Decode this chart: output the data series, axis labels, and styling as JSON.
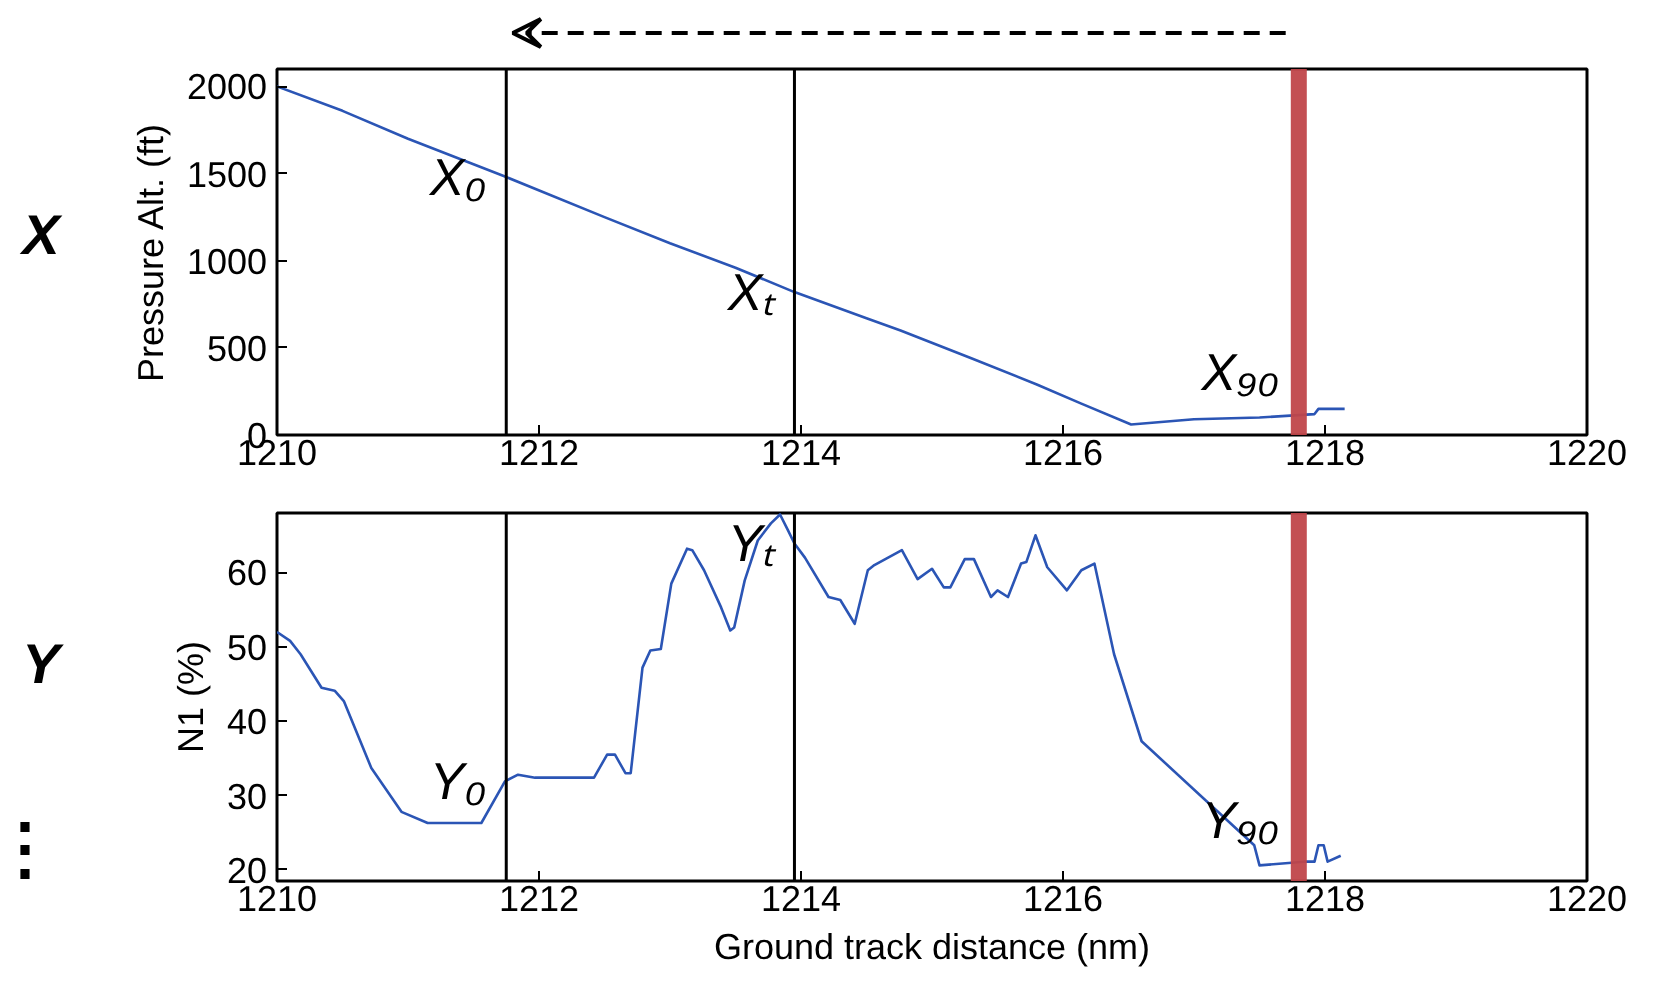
{
  "chart_data": [
    {
      "type": "line",
      "ylabel": "Pressure Alt. (ft)",
      "xlim": [
        1210,
        1220
      ],
      "xticks": [
        1210,
        1212,
        1214,
        1216,
        1218,
        1220
      ],
      "ylim": [
        0,
        2100
      ],
      "yticks": [
        0,
        500,
        1000,
        1500,
        2000
      ],
      "grid": false,
      "series": [
        {
          "color": "#2b55b5",
          "x": [
            1210.0,
            1210.5,
            1211.0,
            1211.75,
            1212.5,
            1213.0,
            1213.5,
            1213.95,
            1214.5,
            1214.76,
            1215.3,
            1215.8,
            1216.14,
            1216.52,
            1217.0,
            1217.5,
            1217.92,
            1217.95,
            1218.15
          ],
          "values": [
            2000,
            1860,
            1700,
            1480,
            1250,
            1100,
            960,
            820,
            670,
            600,
            440,
            290,
            180,
            60,
            90,
            100,
            120,
            150,
            150
          ]
        }
      ],
      "ref_lines": [
        {
          "axis": "x",
          "value": 1211.75,
          "color": "#000000"
        },
        {
          "axis": "x",
          "value": 1213.95,
          "color": "#000000"
        },
        {
          "axis": "x",
          "value": 1217.8,
          "color": "#c0464a"
        }
      ],
      "annotations": [
        {
          "text": "X₀",
          "x": 1211.75,
          "y": 1480
        },
        {
          "text": "Xₜ",
          "x": 1213.95,
          "y": 820
        },
        {
          "text": "X₉₀",
          "x": 1217.8,
          "y": 120
        },
        "X"
      ]
    },
    {
      "type": "line",
      "xlabel": "Ground track distance (nm)",
      "ylabel": "N1 (%)",
      "xlim": [
        1210,
        1220
      ],
      "xticks": [
        1210,
        1212,
        1214,
        1216,
        1218,
        1220
      ],
      "ylim": [
        18.5,
        68
      ],
      "yticks": [
        20,
        30,
        40,
        50,
        60
      ],
      "grid": false,
      "series": [
        {
          "color": "#2b55b5",
          "x": [
            1210.0,
            1210.1,
            1210.18,
            1210.34,
            1210.44,
            1210.51,
            1210.72,
            1210.95,
            1211.15,
            1211.56,
            1211.74,
            1211.84,
            1211.97,
            1212.42,
            1212.52,
            1212.58,
            1212.66,
            1212.7,
            1212.79,
            1212.85,
            1212.93,
            1213.01,
            1213.13,
            1213.17,
            1213.26,
            1213.39,
            1213.46,
            1213.49,
            1213.57,
            1213.67,
            1213.77,
            1213.84,
            1213.9,
            1213.95,
            1214.03,
            1214.21,
            1214.3,
            1214.41,
            1214.51,
            1214.56,
            1214.77,
            1214.89,
            1215.0,
            1215.09,
            1215.14,
            1215.25,
            1215.32,
            1215.45,
            1215.5,
            1215.58,
            1215.68,
            1215.72,
            1215.79,
            1215.88,
            1216.03,
            1216.14,
            1216.24,
            1216.39,
            1216.6,
            1217.46,
            1217.5,
            1217.84,
            1217.92,
            1217.95,
            1217.99,
            1218.02,
            1218.12
          ],
          "values": [
            52.0,
            50.8,
            49.0,
            44.5,
            44.1,
            42.7,
            33.7,
            27.8,
            26.3,
            26.3,
            31.9,
            32.8,
            32.4,
            32.4,
            35.5,
            35.5,
            33.0,
            33.0,
            47.2,
            49.5,
            49.7,
            58.5,
            63.2,
            63.0,
            60.3,
            55.3,
            52.2,
            52.6,
            58.9,
            64.3,
            66.6,
            67.8,
            65.7,
            63.9,
            62.0,
            56.7,
            56.3,
            53.1,
            60.3,
            61.0,
            63.0,
            59.1,
            60.5,
            58.0,
            58.0,
            61.8,
            61.8,
            56.7,
            57.6,
            56.7,
            61.2,
            61.4,
            65.0,
            60.7,
            57.6,
            60.3,
            61.2,
            49.0,
            37.3,
            23.3,
            20.6,
            21.1,
            21.1,
            23.3,
            23.3,
            21.1,
            21.9
          ]
        }
      ],
      "ref_lines": [
        {
          "axis": "x",
          "value": 1211.75,
          "color": "#000000"
        },
        {
          "axis": "x",
          "value": 1213.95,
          "color": "#000000"
        },
        {
          "axis": "x",
          "value": 1217.8,
          "color": "#c0464a"
        }
      ],
      "annotations": [
        {
          "text": "Y₀",
          "x": 1211.75,
          "y": 31.9
        },
        {
          "text": "Yₜ",
          "x": 1213.95,
          "y": 63.9
        },
        {
          "text": "Y₉₀",
          "x": 1217.8,
          "y": 21.1
        },
        "Y",
        "⋮"
      ]
    }
  ]
}
